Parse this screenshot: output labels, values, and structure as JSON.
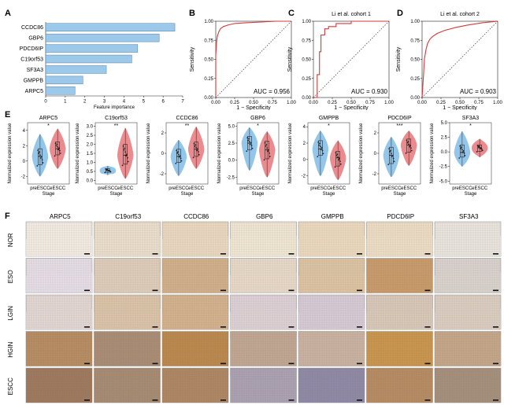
{
  "panel_labels": {
    "A": "A",
    "B": "B",
    "C": "C",
    "D": "D",
    "E": "E",
    "F": "F"
  },
  "chart_data": [
    {
      "id": "A",
      "type": "bar",
      "orientation": "horizontal",
      "categories": [
        "CCDC86",
        "GBP6",
        "PDCD6IP",
        "C19orf53",
        "SF3A3",
        "GMPPB",
        "ARPC5"
      ],
      "values": [
        6.6,
        5.8,
        4.7,
        4.4,
        3.1,
        1.9,
        1.5
      ],
      "xlabel": "Feature importance",
      "xticks": [
        "0",
        "1",
        "2",
        "3",
        "4",
        "5",
        "6",
        "7"
      ],
      "xlim": [
        0,
        7
      ],
      "color": "#9cc9ea"
    },
    {
      "id": "B",
      "type": "line",
      "title": "",
      "xlabel": "1 − Specificity",
      "ylabel": "Sensitivity",
      "xticks": [
        "0.00",
        "0.25",
        "0.50",
        "0.75",
        "1.00"
      ],
      "yticks": [
        "0.00",
        "0.25",
        "0.50",
        "0.75",
        "1.00"
      ],
      "auc": "AUC = 0.956",
      "x": [
        0,
        0,
        0.01,
        0.02,
        0.04,
        0.06,
        0.1,
        0.16,
        0.25,
        0.4,
        0.6,
        0.8,
        1
      ],
      "y": [
        0,
        0.55,
        0.72,
        0.8,
        0.86,
        0.9,
        0.93,
        0.95,
        0.97,
        0.98,
        0.99,
        1,
        1
      ],
      "color": "#d43a3a"
    },
    {
      "id": "C",
      "type": "line",
      "title": "Li et al. cohort 1",
      "xlabel": "1 − Specificity",
      "ylabel": "Sensitivity",
      "xticks": [
        "0.00",
        "0.25",
        "0.50",
        "0.75",
        "1.00"
      ],
      "yticks": [
        "0.00",
        "0.25",
        "0.50",
        "0.75",
        "1.00"
      ],
      "auc": "AUC = 0.930",
      "x": [
        0,
        0.05,
        0.05,
        0.08,
        0.08,
        0.1,
        0.1,
        0.15,
        0.15,
        0.2,
        0.2,
        0.3,
        0.3,
        0.5,
        0.5,
        0.7,
        1
      ],
      "y": [
        0,
        0,
        0.3,
        0.3,
        0.6,
        0.6,
        0.82,
        0.82,
        0.9,
        0.9,
        0.93,
        0.93,
        0.97,
        0.97,
        1,
        1,
        1
      ],
      "color": "#d43a3a"
    },
    {
      "id": "D",
      "type": "line",
      "title": "Li et al. cohort 2",
      "xlabel": "1 − Specificity",
      "ylabel": "Sensitivity",
      "xticks": [
        "0.00",
        "0.25",
        "0.50",
        "0.75",
        "1.00"
      ],
      "yticks": [
        "0.00",
        "0.25",
        "0.50",
        "0.75",
        "1.00"
      ],
      "auc": "AUC = 0.903",
      "x": [
        0,
        0.02,
        0.03,
        0.05,
        0.07,
        0.1,
        0.14,
        0.2,
        0.3,
        0.45,
        0.6,
        0.8,
        1
      ],
      "y": [
        0,
        0.3,
        0.5,
        0.62,
        0.7,
        0.76,
        0.8,
        0.84,
        0.88,
        0.92,
        0.95,
        0.98,
        1
      ],
      "color": "#d43a3a"
    }
  ],
  "violins": {
    "ylabel": "Normalized expression value",
    "xlabel": "Stage",
    "groups": [
      "preESCC",
      "eESCC"
    ],
    "colors": {
      "pre": "#8ec3ea",
      "e": "#e9868a"
    },
    "plots": [
      {
        "gene": "ARPC5",
        "sig": "*",
        "yticks": [
          "4",
          "2",
          "0",
          "-2"
        ],
        "ymin": -3,
        "ymax": 5,
        "pre": {
          "min": -2,
          "q1": -0.5,
          "med": 0.6,
          "q3": 1.6,
          "max": 3.5
        },
        "e": {
          "min": -1,
          "q1": 0.8,
          "med": 1.6,
          "q3": 2.5,
          "max": 4.2
        }
      },
      {
        "gene": "C19orf53",
        "sig": "**",
        "yticks": [
          "3.0",
          "2.5",
          "2.0",
          "1.5",
          "1.0",
          "0.5",
          "0.0"
        ],
        "ymin": -0.2,
        "ymax": 3.2,
        "pre": {
          "min": 0.3,
          "q1": 0.45,
          "med": 0.55,
          "q3": 0.65,
          "max": 0.8
        },
        "e": {
          "min": 0.1,
          "q1": 0.9,
          "med": 1.4,
          "q3": 2.0,
          "max": 2.9
        }
      },
      {
        "gene": "CCDC86",
        "sig": "**",
        "yticks": [
          "2",
          "0",
          "-2"
        ],
        "ymin": -3,
        "ymax": 3,
        "pre": {
          "min": -2.2,
          "q1": -0.9,
          "med": -0.3,
          "q3": 0.4,
          "max": 1.3
        },
        "e": {
          "min": -1.5,
          "q1": -0.3,
          "med": 0.4,
          "q3": 1.1,
          "max": 2.6
        }
      },
      {
        "gene": "GBP6",
        "sig": "*",
        "yticks": [
          "5.0",
          "2.5",
          "0.0",
          "-2.5"
        ],
        "ymin": -3.5,
        "ymax": 5.5,
        "pre": {
          "min": -1.5,
          "q1": 1.5,
          "med": 2.5,
          "q3": 3.5,
          "max": 4.8
        },
        "e": {
          "min": -2.5,
          "q1": 0.2,
          "med": 1.5,
          "q3": 2.8,
          "max": 4.2
        }
      },
      {
        "gene": "GMPPB",
        "sig": "*",
        "yticks": [
          "4",
          "2",
          "0",
          "-2"
        ],
        "ymin": -3,
        "ymax": 4.5,
        "pre": {
          "min": -2,
          "q1": 0.5,
          "med": 1.3,
          "q3": 2.3,
          "max": 3.5
        },
        "e": {
          "min": -2.5,
          "q1": -0.8,
          "med": 0.2,
          "q3": 1,
          "max": 2.3
        }
      },
      {
        "gene": "PDCD6IP",
        "sig": "***",
        "yticks": [
          "2",
          "0",
          "-2"
        ],
        "ymin": -3,
        "ymax": 3,
        "pre": {
          "min": -2.3,
          "q1": -1,
          "med": -0.2,
          "q3": 0.6,
          "max": 1.6
        },
        "e": {
          "min": -1.2,
          "q1": 0.1,
          "med": 0.8,
          "q3": 1.4,
          "max": 2.2
        }
      },
      {
        "gene": "SF3A3",
        "sig": "*",
        "yticks": [
          "5.0",
          "2.5",
          "0.0",
          "-2.5",
          "-5.0"
        ],
        "ymin": -5.5,
        "ymax": 5,
        "pre": {
          "min": -2.5,
          "q1": -0.9,
          "med": -0.1,
          "q3": 1.2,
          "max": 3.5
        },
        "e": {
          "min": -0.9,
          "q1": 0.1,
          "med": 0.7,
          "q3": 1.2,
          "max": 2.2
        }
      }
    ]
  },
  "ihc": {
    "columns": [
      "ARPC5",
      "C19orf53",
      "CCDC86",
      "GBP6",
      "GMPPB",
      "PDCD6IP",
      "SF3A3"
    ],
    "rows": [
      "NOR",
      "ESO",
      "LGIN",
      "HGIN",
      "ESCC"
    ]
  }
}
